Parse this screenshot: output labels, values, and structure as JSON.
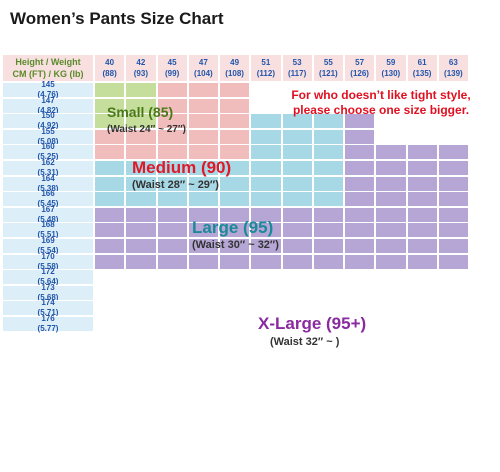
{
  "title": "Women’s Pants Size Chart",
  "header": {
    "line1": "Height / Weight",
    "line2": "CM (FT) / KG (lb)"
  },
  "weights": [
    {
      "kg": "40",
      "lb": "(88)"
    },
    {
      "kg": "42",
      "lb": "(93)"
    },
    {
      "kg": "45",
      "lb": "(99)"
    },
    {
      "kg": "47",
      "lb": "(104)"
    },
    {
      "kg": "49",
      "lb": "(108)"
    },
    {
      "kg": "51",
      "lb": "(112)"
    },
    {
      "kg": "53",
      "lb": "(117)"
    },
    {
      "kg": "55",
      "lb": "(121)"
    },
    {
      "kg": "57",
      "lb": "(126)"
    },
    {
      "kg": "59",
      "lb": "(130)"
    },
    {
      "kg": "61",
      "lb": "(135)"
    },
    {
      "kg": "63",
      "lb": "(139)"
    }
  ],
  "heights": [
    {
      "cm": "145",
      "ft": "(4.76)"
    },
    {
      "cm": "147",
      "ft": "(4.82)"
    },
    {
      "cm": "150",
      "ft": "(4.92)"
    },
    {
      "cm": "155",
      "ft": "(5.08)"
    },
    {
      "cm": "160",
      "ft": "(5.25)"
    },
    {
      "cm": "162",
      "ft": "(5.31)"
    },
    {
      "cm": "164",
      "ft": "(5.38)"
    },
    {
      "cm": "166",
      "ft": "(5.45)"
    },
    {
      "cm": "167",
      "ft": "(5.48)"
    },
    {
      "cm": "168",
      "ft": "(5.51)"
    },
    {
      "cm": "169",
      "ft": "(5.54)"
    },
    {
      "cm": "170",
      "ft": "(5.58)"
    },
    {
      "cm": "172",
      "ft": "(5.64)"
    },
    {
      "cm": "173",
      "ft": "(5.68)"
    },
    {
      "cm": "174",
      "ft": "(5.71)"
    },
    {
      "cm": "176",
      "ft": "(5.77)"
    }
  ],
  "size_codes": [
    "",
    "S",
    "M",
    "L",
    "XL"
  ],
  "size_map": [
    [
      1,
      1,
      2,
      2,
      2,
      0,
      0,
      0,
      0,
      0,
      0,
      0
    ],
    [
      1,
      1,
      2,
      2,
      2,
      0,
      0,
      0,
      0,
      0,
      0,
      0
    ],
    [
      1,
      1,
      2,
      2,
      2,
      3,
      3,
      3,
      4,
      0,
      0,
      0
    ],
    [
      2,
      2,
      2,
      2,
      2,
      3,
      3,
      3,
      4,
      0,
      0,
      0
    ],
    [
      2,
      2,
      2,
      2,
      2,
      3,
      3,
      3,
      4,
      4,
      4,
      4
    ],
    [
      3,
      3,
      3,
      3,
      3,
      3,
      3,
      3,
      4,
      4,
      4,
      4
    ],
    [
      3,
      3,
      3,
      3,
      3,
      3,
      3,
      3,
      4,
      4,
      4,
      4
    ],
    [
      3,
      3,
      3,
      3,
      3,
      3,
      3,
      3,
      4,
      4,
      4,
      4
    ],
    [
      4,
      4,
      4,
      4,
      4,
      4,
      4,
      4,
      4,
      4,
      4,
      4
    ],
    [
      4,
      4,
      4,
      4,
      4,
      4,
      4,
      4,
      4,
      4,
      4,
      4
    ],
    [
      4,
      4,
      4,
      4,
      4,
      4,
      4,
      4,
      4,
      4,
      4,
      4
    ],
    [
      4,
      4,
      4,
      4,
      4,
      4,
      4,
      4,
      4,
      4,
      4,
      4
    ],
    [
      0,
      0,
      0,
      0,
      0,
      0,
      0,
      0,
      0,
      0,
      0,
      0
    ],
    [
      0,
      0,
      0,
      0,
      0,
      0,
      0,
      0,
      0,
      0,
      0,
      0
    ],
    [
      0,
      0,
      0,
      0,
      0,
      0,
      0,
      0,
      0,
      0,
      0,
      0
    ],
    [
      0,
      0,
      0,
      0,
      0,
      0,
      0,
      0,
      0,
      0,
      0,
      0
    ]
  ],
  "colors": {
    "S": "#c5de9c",
    "M": "#f0bcbc",
    "L": "#a6d8e6",
    "XL": "#b6a6d6",
    "empty": "#ffffff"
  },
  "sizes": {
    "small": {
      "name": "Small (85)",
      "waist": "(Waist 24″ ~ 27″)",
      "color": "#4a7a18"
    },
    "medium": {
      "name": "Medium (90)",
      "waist": "(Waist 28″ ~ 29″)",
      "color": "#e01828"
    },
    "large": {
      "name": "Large (95)",
      "waist": "(Waist 30″ ~ 32″)",
      "color": "#1a8a98"
    },
    "xlarge": {
      "name": "X-Large (95+)",
      "waist": "(Waist 32″ ~ )",
      "color": "#8a2aa0"
    }
  },
  "note": {
    "line1": "For who doesn’t like tight style,",
    "line2": "please choose one size bigger."
  }
}
